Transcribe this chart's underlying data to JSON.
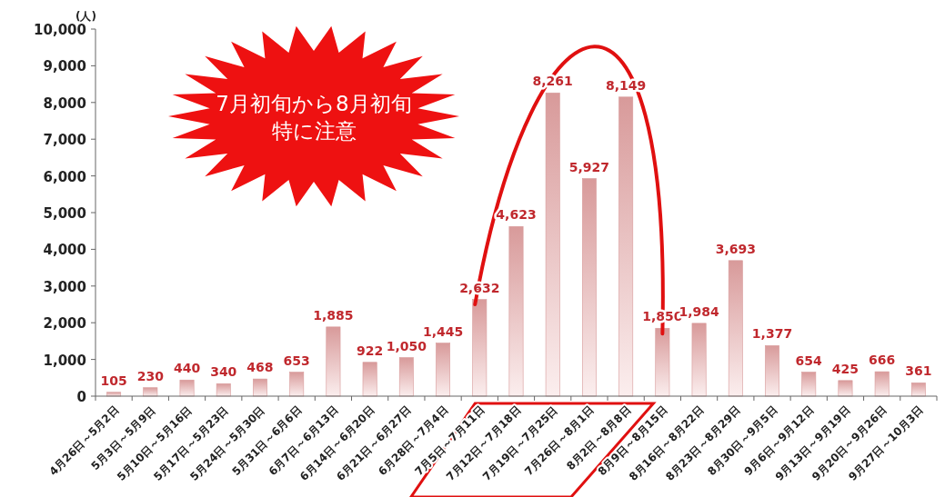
{
  "chart_data": {
    "type": "bar",
    "ylabel": "(人)",
    "categories": [
      "4月26日～5月2日",
      "5月3日～5月9日",
      "5月10日～5月16日",
      "5月17日～5月23日",
      "5月24日～5月30日",
      "5月31日～6月6日",
      "6月7日～6月13日",
      "6月14日～6月20日",
      "6月21日～6月27日",
      "6月28日～7月4日",
      "7月5日～7月11日",
      "7月12日～7月18日",
      "7月19日～7月25日",
      "7月26日～8月1日",
      "8月2日～8月8日",
      "8月9日～8月15日",
      "8月16日～8月22日",
      "8月23日～8月29日",
      "8月30日～9月5日",
      "9月6日～9月12日",
      "9月13日～9月19日",
      "9月20日～9月26日",
      "9月27日～10月3日"
    ],
    "values": [
      105,
      230,
      440,
      340,
      468,
      653,
      1885,
      922,
      1050,
      1445,
      2632,
      4623,
      8261,
      5927,
      8149,
      1850,
      1984,
      3693,
      1377,
      654,
      425,
      666,
      361
    ],
    "color": "#d89a9a",
    "ylim": [
      0,
      10000
    ],
    "yticks": [
      {
        "value": 0,
        "label": "0"
      },
      {
        "value": 1000,
        "label": "1,000"
      },
      {
        "value": 2000,
        "label": "2,000"
      },
      {
        "value": 3000,
        "label": "3,000"
      },
      {
        "value": 4000,
        "label": "4,000"
      },
      {
        "value": 5000,
        "label": "5,000"
      },
      {
        "value": 6000,
        "label": "6,000"
      },
      {
        "value": 7000,
        "label": "7,000"
      },
      {
        "value": 8000,
        "label": "8,000"
      },
      {
        "value": 9000,
        "label": "9,000"
      },
      {
        "value": 10000,
        "label": "10,000"
      }
    ],
    "value_labels": [
      "105",
      "230",
      "440",
      "340",
      "468",
      "653",
      "1,885",
      "922",
      "1,050",
      "1,445",
      "2,632",
      "4,623",
      "8,261",
      "5,927",
      "8,149",
      "1,850",
      "1,984",
      "3,693",
      "1,377",
      "654",
      "425",
      "666",
      "361"
    ],
    "grid": false,
    "annotations": [
      "7月初旬から8月初旬",
      "特に注意"
    ]
  }
}
